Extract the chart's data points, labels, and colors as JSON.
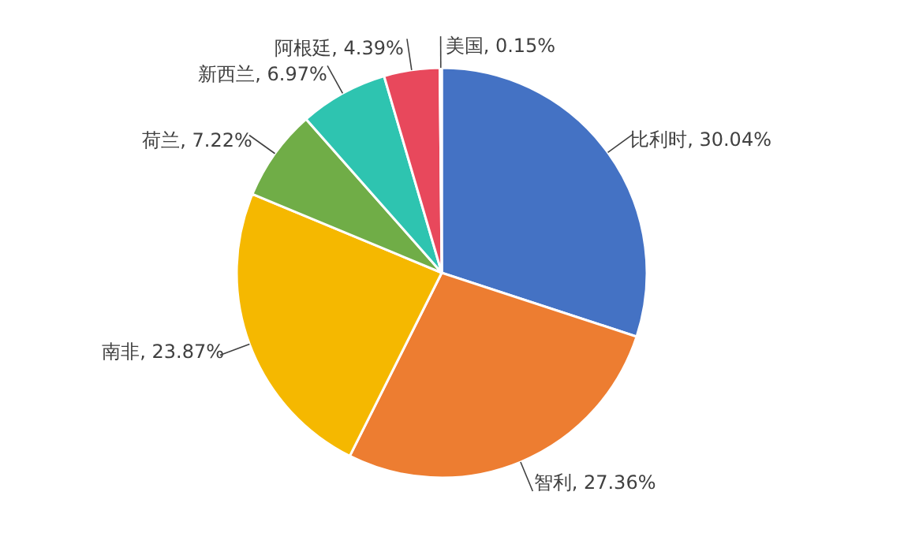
{
  "chart_data": {
    "type": "pie",
    "categories": [
      "比利时",
      "智利",
      "南非",
      "荷兰",
      "新西兰",
      "阿根廷",
      "美国"
    ],
    "values": [
      30.04,
      27.36,
      23.87,
      7.22,
      6.97,
      4.39,
      0.15
    ],
    "value_labels": [
      "30.04%",
      "27.36%",
      "23.87%",
      "7.22%",
      "6.97%",
      "4.39%",
      "0.15%"
    ],
    "colors": [
      "#4472c4",
      "#ed7d31",
      "#f5b800",
      "#70ad47",
      "#2ec4b0",
      "#e8485c",
      "#dddddd"
    ],
    "legend": false
  }
}
